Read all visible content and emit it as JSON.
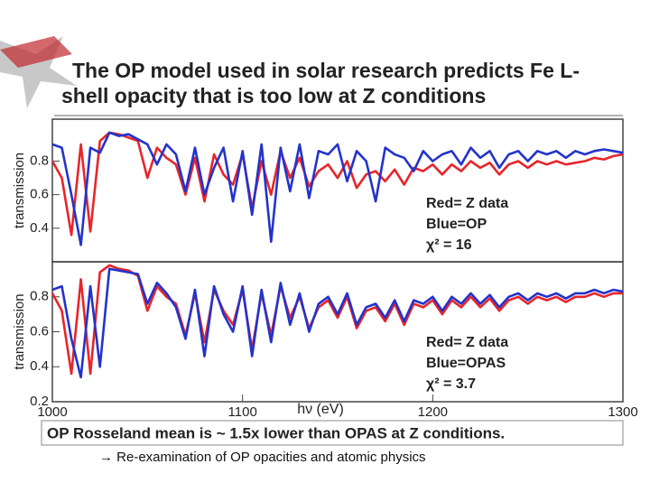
{
  "header": {
    "title": [
      "The OP model used in solar research predicts Fe L-",
      "shell opacity that is too low at Z conditions"
    ]
  },
  "footer": "OP Rosseland mean is ~ 1.5x lower than OPAS at Z conditions.",
  "note": "→ Re-examination of OP opacities and atomic physics",
  "chart_data": [
    {
      "type": "line",
      "ylabel": "transmission",
      "xlim": [
        1000,
        1300
      ],
      "ylim": [
        0.2,
        1.05
      ],
      "yticks": [
        0.4,
        0.6,
        0.8
      ],
      "annotations": [
        "Red= Z data",
        "Blue=OP",
        "χ² = 16"
      ],
      "x": [
        1000,
        1005,
        1010,
        1015,
        1020,
        1025,
        1030,
        1035,
        1040,
        1045,
        1050,
        1055,
        1060,
        1065,
        1070,
        1075,
        1080,
        1085,
        1090,
        1095,
        1100,
        1105,
        1110,
        1115,
        1120,
        1125,
        1130,
        1135,
        1140,
        1145,
        1150,
        1155,
        1160,
        1165,
        1170,
        1175,
        1180,
        1185,
        1190,
        1195,
        1200,
        1205,
        1210,
        1215,
        1220,
        1225,
        1230,
        1235,
        1240,
        1245,
        1250,
        1255,
        1260,
        1265,
        1270,
        1275,
        1280,
        1285,
        1290,
        1295,
        1300
      ],
      "series": [
        {
          "color": "#e8252a",
          "values": [
            0.8,
            0.7,
            0.36,
            0.9,
            0.38,
            0.92,
            0.97,
            0.96,
            0.94,
            0.92,
            0.7,
            0.88,
            0.82,
            0.78,
            0.6,
            0.82,
            0.56,
            0.84,
            0.72,
            0.66,
            0.84,
            0.52,
            0.8,
            0.6,
            0.86,
            0.7,
            0.82,
            0.65,
            0.74,
            0.78,
            0.7,
            0.8,
            0.64,
            0.72,
            0.74,
            0.68,
            0.75,
            0.66,
            0.76,
            0.74,
            0.78,
            0.72,
            0.78,
            0.74,
            0.8,
            0.76,
            0.79,
            0.72,
            0.78,
            0.8,
            0.76,
            0.8,
            0.78,
            0.8,
            0.78,
            0.79,
            0.8,
            0.82,
            0.81,
            0.83,
            0.84
          ]
        },
        {
          "color": "#2233cc",
          "values": [
            0.9,
            0.88,
            0.6,
            0.3,
            0.88,
            0.85,
            0.97,
            0.95,
            0.96,
            0.93,
            0.9,
            0.78,
            0.9,
            0.84,
            0.62,
            0.88,
            0.6,
            0.76,
            0.88,
            0.56,
            0.86,
            0.48,
            0.9,
            0.32,
            0.88,
            0.62,
            0.9,
            0.58,
            0.86,
            0.84,
            0.9,
            0.68,
            0.86,
            0.8,
            0.56,
            0.88,
            0.84,
            0.82,
            0.74,
            0.86,
            0.8,
            0.84,
            0.86,
            0.78,
            0.88,
            0.82,
            0.86,
            0.76,
            0.84,
            0.86,
            0.8,
            0.86,
            0.84,
            0.86,
            0.82,
            0.86,
            0.84,
            0.86,
            0.87,
            0.86,
            0.85
          ]
        }
      ]
    },
    {
      "type": "line",
      "ylabel": "transmission",
      "xlabel": "hν (eV)",
      "xlim": [
        1000,
        1300
      ],
      "xticks": [
        1000,
        1100,
        1200,
        1300
      ],
      "ylim": [
        0.2,
        1.0
      ],
      "yticks": [
        0.2,
        0.4,
        0.6,
        0.8
      ],
      "annotations": [
        "Red= Z data",
        "Blue=OPAS",
        "χ² = 3.7"
      ],
      "x": [
        1000,
        1005,
        1010,
        1015,
        1020,
        1025,
        1030,
        1035,
        1040,
        1045,
        1050,
        1055,
        1060,
        1065,
        1070,
        1075,
        1080,
        1085,
        1090,
        1095,
        1100,
        1105,
        1110,
        1115,
        1120,
        1125,
        1130,
        1135,
        1140,
        1145,
        1150,
        1155,
        1160,
        1165,
        1170,
        1175,
        1180,
        1185,
        1190,
        1195,
        1200,
        1205,
        1210,
        1215,
        1220,
        1225,
        1230,
        1235,
        1240,
        1245,
        1250,
        1255,
        1260,
        1265,
        1270,
        1275,
        1280,
        1285,
        1290,
        1295,
        1300
      ],
      "series": [
        {
          "color": "#e8252a",
          "values": [
            0.82,
            0.72,
            0.36,
            0.9,
            0.36,
            0.94,
            0.98,
            0.96,
            0.95,
            0.92,
            0.72,
            0.86,
            0.8,
            0.76,
            0.58,
            0.82,
            0.54,
            0.84,
            0.72,
            0.64,
            0.84,
            0.5,
            0.82,
            0.58,
            0.86,
            0.68,
            0.8,
            0.62,
            0.74,
            0.78,
            0.68,
            0.8,
            0.62,
            0.72,
            0.74,
            0.66,
            0.76,
            0.64,
            0.76,
            0.74,
            0.78,
            0.7,
            0.78,
            0.74,
            0.8,
            0.74,
            0.79,
            0.72,
            0.78,
            0.8,
            0.76,
            0.8,
            0.78,
            0.8,
            0.77,
            0.8,
            0.8,
            0.82,
            0.8,
            0.82,
            0.82
          ]
        },
        {
          "color": "#2233cc",
          "values": [
            0.84,
            0.86,
            0.56,
            0.34,
            0.86,
            0.4,
            0.96,
            0.95,
            0.94,
            0.93,
            0.76,
            0.88,
            0.82,
            0.74,
            0.56,
            0.84,
            0.46,
            0.86,
            0.7,
            0.6,
            0.86,
            0.46,
            0.84,
            0.54,
            0.88,
            0.64,
            0.82,
            0.6,
            0.76,
            0.8,
            0.7,
            0.82,
            0.64,
            0.74,
            0.76,
            0.68,
            0.78,
            0.66,
            0.78,
            0.76,
            0.8,
            0.72,
            0.8,
            0.76,
            0.82,
            0.76,
            0.81,
            0.74,
            0.8,
            0.82,
            0.78,
            0.82,
            0.8,
            0.82,
            0.79,
            0.82,
            0.82,
            0.84,
            0.82,
            0.84,
            0.83
          ]
        }
      ]
    }
  ]
}
